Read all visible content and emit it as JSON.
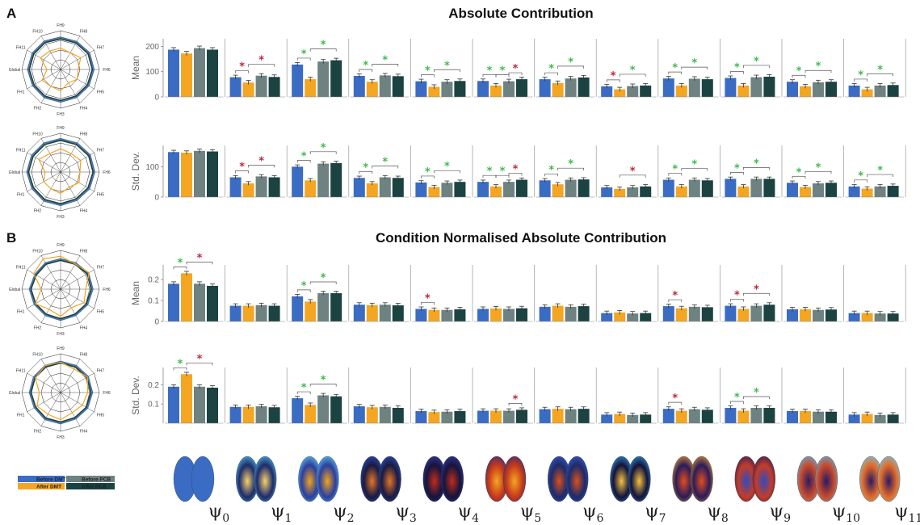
{
  "colors": {
    "before_dmt": "#3a6cc4",
    "after_dmt": "#f4a622",
    "before_pcb": "#6e8282",
    "after_pcb": "#1b4342",
    "sig_green": "#3dba4b",
    "sig_red": "#c0243a"
  },
  "figure": {
    "panel_a_label": "A",
    "panel_b_label": "B",
    "title_a": "Absolute Contribution",
    "title_b": "Condition Normalised Absolute Contribution",
    "ylabel_mean": "Mean",
    "ylabel_sd": "Std. Dev."
  },
  "radar": {
    "labels": [
      "FH9",
      "FH8",
      "FH7",
      "FH6",
      "FH5",
      "FH4",
      "FH3",
      "FH2",
      "FH1",
      "Global",
      "FH11",
      "FH10"
    ]
  },
  "legend": {
    "items": [
      {
        "label": "Before DMT",
        "color": "#3a6cc4"
      },
      {
        "label": "After DMT",
        "color": "#f4a622"
      },
      {
        "label": "Before PCB",
        "color": "#6e8282"
      },
      {
        "label": "After PCB",
        "color": "#1b4342"
      }
    ]
  },
  "modes": {
    "symbol": "ψ",
    "subscripts": [
      "0",
      "1",
      "2",
      "3",
      "4",
      "5",
      "6",
      "7",
      "8",
      "9",
      "10",
      "11"
    ]
  },
  "chart_data": [
    {
      "type": "bar",
      "panel": "A",
      "ylabel": "Mean",
      "ylim": [
        0,
        230
      ],
      "yticks": [
        0,
        100,
        200
      ],
      "series_names": [
        "Before DMT",
        "After DMT",
        "Before PCB",
        "After PCB"
      ],
      "groups": [
        {
          "label": "ψ0",
          "values": [
            187,
            172,
            193,
            187
          ]
        },
        {
          "label": "ψ1",
          "values": [
            78,
            57,
            84,
            79
          ]
        },
        {
          "label": "ψ2",
          "values": [
            128,
            70,
            140,
            145
          ]
        },
        {
          "label": "ψ3",
          "values": [
            83,
            60,
            85,
            82
          ]
        },
        {
          "label": "ψ4",
          "values": [
            62,
            40,
            60,
            63
          ]
        },
        {
          "label": "ψ5",
          "values": [
            63,
            45,
            62,
            70
          ]
        },
        {
          "label": "ψ6",
          "values": [
            70,
            55,
            73,
            77
          ]
        },
        {
          "label": "ψ7",
          "values": [
            42,
            30,
            43,
            45
          ]
        },
        {
          "label": "ψ8",
          "values": [
            73,
            45,
            72,
            70
          ]
        },
        {
          "label": "ψ9",
          "values": [
            75,
            45,
            78,
            80
          ]
        },
        {
          "label": "ψ10",
          "values": [
            60,
            42,
            58,
            60
          ]
        },
        {
          "label": "ψ11",
          "values": [
            45,
            30,
            45,
            47
          ]
        }
      ],
      "significance": [
        [],
        [
          [
            "a",
            "r"
          ],
          [
            "c",
            "r"
          ]
        ],
        [
          [
            "a",
            "g"
          ],
          [
            "c",
            "g"
          ]
        ],
        [
          [
            "a",
            "g"
          ],
          [
            "c",
            "g"
          ]
        ],
        [
          [
            "a",
            "g"
          ],
          [
            "c",
            "g"
          ]
        ],
        [
          [
            "a",
            "g"
          ],
          [
            "b",
            "g"
          ],
          [
            "d",
            "r"
          ]
        ],
        [
          [
            "a",
            "g"
          ],
          [
            "c",
            "g"
          ]
        ],
        [
          [
            "a",
            "r"
          ],
          [
            "c",
            "g"
          ]
        ],
        [
          [
            "a",
            "g"
          ],
          [
            "c",
            "g"
          ]
        ],
        [
          [
            "a",
            "g"
          ],
          [
            "c",
            "g"
          ]
        ],
        [
          [
            "a",
            "g"
          ],
          [
            "c",
            "g"
          ]
        ],
        [
          [
            "a",
            "g"
          ],
          [
            "c",
            "g"
          ]
        ]
      ]
    },
    {
      "type": "bar",
      "panel": "A",
      "ylabel": "Std. Dev.",
      "ylim": [
        0,
        170
      ],
      "yticks": [
        0,
        100
      ],
      "series_names": [
        "Before DMT",
        "After DMT",
        "Before PCB",
        "After PCB"
      ],
      "groups": [
        {
          "label": "ψ0",
          "values": [
            148,
            146,
            152,
            150
          ]
        },
        {
          "label": "ψ1",
          "values": [
            65,
            45,
            68,
            65
          ]
        },
        {
          "label": "ψ2",
          "values": [
            100,
            55,
            110,
            112
          ]
        },
        {
          "label": "ψ3",
          "values": [
            63,
            45,
            65,
            63
          ]
        },
        {
          "label": "ψ4",
          "values": [
            48,
            33,
            47,
            50
          ]
        },
        {
          "label": "ψ5",
          "values": [
            50,
            35,
            50,
            57
          ]
        },
        {
          "label": "ψ6",
          "values": [
            55,
            42,
            57,
            58
          ]
        },
        {
          "label": "ψ7",
          "values": [
            32,
            27,
            32,
            35
          ]
        },
        {
          "label": "ψ8",
          "values": [
            57,
            35,
            57,
            55
          ]
        },
        {
          "label": "ψ9",
          "values": [
            60,
            35,
            60,
            60
          ]
        },
        {
          "label": "ψ10",
          "values": [
            47,
            33,
            45,
            47
          ]
        },
        {
          "label": "ψ11",
          "values": [
            35,
            28,
            35,
            37
          ]
        }
      ],
      "significance": [
        [],
        [
          [
            "a",
            "r"
          ],
          [
            "c",
            "r"
          ]
        ],
        [
          [
            "a",
            "g"
          ],
          [
            "c",
            "g"
          ]
        ],
        [
          [
            "a",
            "g"
          ],
          [
            "c",
            "g"
          ]
        ],
        [
          [
            "a",
            "g"
          ],
          [
            "c",
            "g"
          ]
        ],
        [
          [
            "a",
            "g"
          ],
          [
            "b",
            "g"
          ],
          [
            "d",
            "r"
          ]
        ],
        [
          [
            "a",
            "g"
          ],
          [
            "c",
            "g"
          ]
        ],
        [
          [
            "c",
            "r"
          ]
        ],
        [
          [
            "a",
            "g"
          ],
          [
            "c",
            "g"
          ]
        ],
        [
          [
            "a",
            "g"
          ],
          [
            "c",
            "g"
          ]
        ],
        [
          [
            "a",
            "g"
          ],
          [
            "c",
            "g"
          ]
        ],
        [
          [
            "a",
            "g"
          ],
          [
            "c",
            "g"
          ]
        ]
      ]
    },
    {
      "type": "bar",
      "panel": "B",
      "ylabel": "Mean",
      "ylim": [
        0,
        0.27
      ],
      "yticks": [
        0,
        0.1,
        0.2
      ],
      "series_names": [
        "Before DMT",
        "After DMT",
        "Before PCB",
        "After PCB"
      ],
      "groups": [
        {
          "label": "ψ0",
          "values": [
            0.18,
            0.23,
            0.18,
            0.17
          ]
        },
        {
          "label": "ψ1",
          "values": [
            0.075,
            0.075,
            0.078,
            0.075
          ]
        },
        {
          "label": "ψ2",
          "values": [
            0.12,
            0.095,
            0.135,
            0.135
          ]
        },
        {
          "label": "ψ3",
          "values": [
            0.08,
            0.078,
            0.08,
            0.077
          ]
        },
        {
          "label": "ψ4",
          "values": [
            0.06,
            0.055,
            0.055,
            0.058
          ]
        },
        {
          "label": "ψ5",
          "values": [
            0.06,
            0.062,
            0.06,
            0.063
          ]
        },
        {
          "label": "ψ6",
          "values": [
            0.07,
            0.075,
            0.07,
            0.073
          ]
        },
        {
          "label": "ψ7",
          "values": [
            0.04,
            0.043,
            0.038,
            0.04
          ]
        },
        {
          "label": "ψ8",
          "values": [
            0.073,
            0.063,
            0.07,
            0.068
          ]
        },
        {
          "label": "ψ9",
          "values": [
            0.075,
            0.06,
            0.075,
            0.08
          ]
        },
        {
          "label": "ψ10",
          "values": [
            0.058,
            0.058,
            0.055,
            0.057
          ]
        },
        {
          "label": "ψ11",
          "values": [
            0.04,
            0.04,
            0.038,
            0.038
          ]
        }
      ],
      "significance": [
        [
          [
            "a",
            "g"
          ],
          [
            "c",
            "r"
          ]
        ],
        [],
        [
          [
            "a",
            "g"
          ],
          [
            "c",
            "g"
          ]
        ],
        [],
        [
          [
            "a",
            "r"
          ]
        ],
        [],
        [],
        [],
        [
          [
            "a",
            "r"
          ]
        ],
        [
          [
            "a",
            "r"
          ],
          [
            "c",
            "r"
          ]
        ],
        [],
        []
      ]
    },
    {
      "type": "bar",
      "panel": "B",
      "ylabel": "Std. Dev.",
      "ylim": [
        0,
        0.29
      ],
      "yticks": [
        0.1,
        0.2
      ],
      "series_names": [
        "Before DMT",
        "After DMT",
        "Before PCB",
        "After PCB"
      ],
      "groups": [
        {
          "label": "ψ0",
          "values": [
            0.19,
            0.255,
            0.19,
            0.185
          ]
        },
        {
          "label": "ψ1",
          "values": [
            0.085,
            0.085,
            0.088,
            0.083
          ]
        },
        {
          "label": "ψ2",
          "values": [
            0.13,
            0.095,
            0.145,
            0.14
          ]
        },
        {
          "label": "ψ3",
          "values": [
            0.088,
            0.083,
            0.085,
            0.08
          ]
        },
        {
          "label": "ψ4",
          "values": [
            0.063,
            0.058,
            0.06,
            0.063
          ]
        },
        {
          "label": "ψ5",
          "values": [
            0.065,
            0.065,
            0.065,
            0.07
          ]
        },
        {
          "label": "ψ6",
          "values": [
            0.073,
            0.075,
            0.073,
            0.075
          ]
        },
        {
          "label": "ψ7",
          "values": [
            0.045,
            0.048,
            0.043,
            0.045
          ]
        },
        {
          "label": "ψ8",
          "values": [
            0.075,
            0.065,
            0.073,
            0.07
          ]
        },
        {
          "label": "ψ9",
          "values": [
            0.08,
            0.065,
            0.08,
            0.08
          ]
        },
        {
          "label": "ψ10",
          "values": [
            0.063,
            0.063,
            0.06,
            0.06
          ]
        },
        {
          "label": "ψ11",
          "values": [
            0.045,
            0.048,
            0.043,
            0.045
          ]
        }
      ],
      "significance": [
        [
          [
            "a",
            "g"
          ],
          [
            "c",
            "r"
          ]
        ],
        [],
        [
          [
            "a",
            "g"
          ],
          [
            "c",
            "g"
          ]
        ],
        [],
        [],
        [
          [
            "d",
            "r"
          ]
        ],
        [],
        [],
        [
          [
            "a",
            "r"
          ]
        ],
        [
          [
            "a",
            "g"
          ],
          [
            "c",
            "g"
          ]
        ],
        [],
        []
      ]
    }
  ]
}
